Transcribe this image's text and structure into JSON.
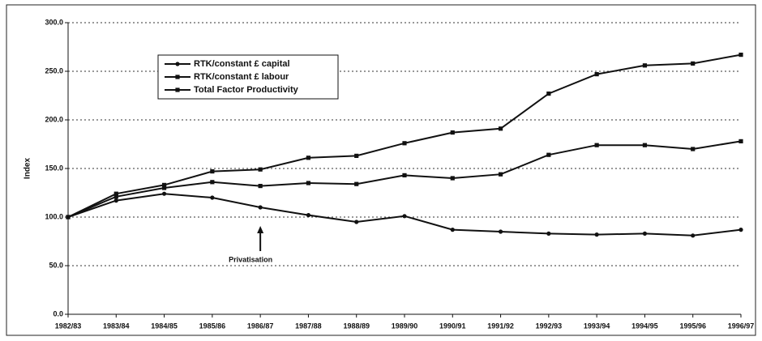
{
  "chart_data": {
    "type": "line",
    "y_label": "Index",
    "annotation": "Privatisation",
    "categories": [
      "1982/83",
      "1983/84",
      "1984/85",
      "1985/86",
      "1986/87",
      "1987/88",
      "1988/89",
      "1989/90",
      "1990/91",
      "1991/92",
      "1992/93",
      "1993/94",
      "1994/95",
      "1995/96",
      "1996/97"
    ],
    "series": [
      {
        "name": "RTK/constant £ capital",
        "color": "#111111",
        "marker": "circle",
        "values": [
          100,
          117,
          124,
          120,
          110,
          102,
          95,
          101,
          87,
          85,
          83,
          82,
          83,
          81,
          87
        ]
      },
      {
        "name": "RTK/constant £ labour",
        "color": "#111111",
        "marker": "square",
        "values": [
          100,
          124,
          133,
          147,
          149,
          161,
          163,
          176,
          187,
          191,
          227,
          247,
          256,
          258,
          267
        ]
      },
      {
        "name": "Total Factor Productivity",
        "color": "#111111",
        "marker": "square",
        "values": [
          100,
          121,
          130,
          136,
          132,
          135,
          134,
          143,
          140,
          144,
          164,
          174,
          174,
          170,
          178
        ]
      }
    ],
    "ylim": [
      0,
      300
    ],
    "yticks": [
      {
        "value": 0,
        "label": "0.0"
      },
      {
        "value": 50,
        "label": "50.0"
      },
      {
        "value": 100,
        "label": "100.0"
      },
      {
        "value": 150,
        "label": "150.0"
      },
      {
        "value": 200,
        "label": "200.0"
      },
      {
        "value": 250,
        "label": "250.0"
      },
      {
        "value": 300,
        "label": "300.0"
      }
    ],
    "grid": true,
    "legend": "upper left"
  }
}
